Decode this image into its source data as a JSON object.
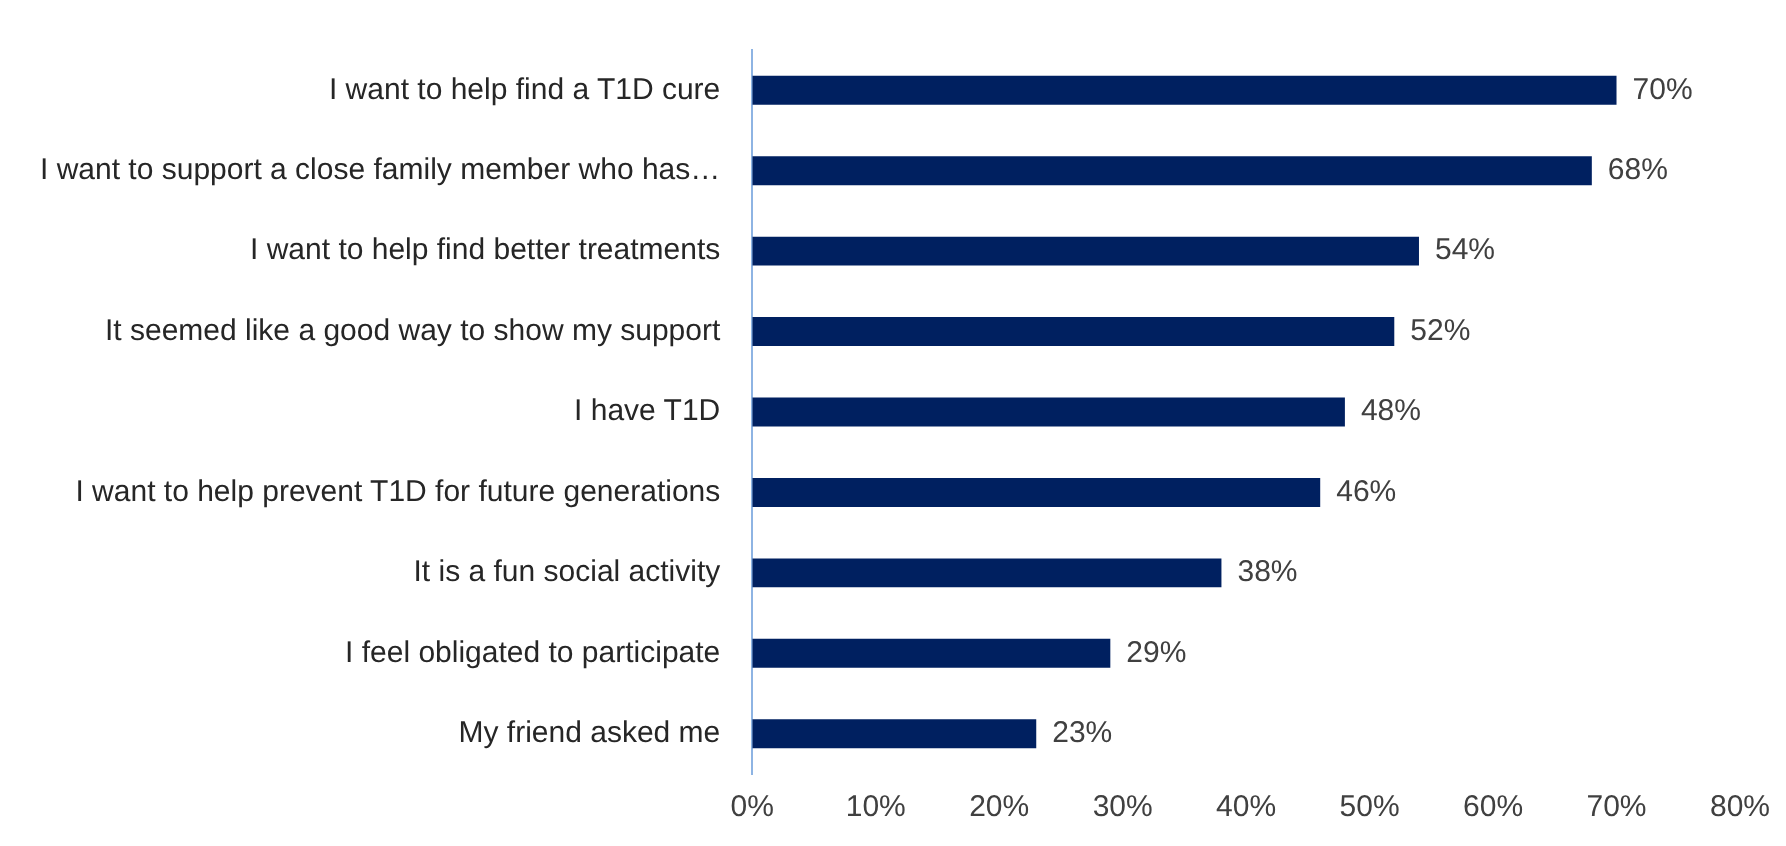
{
  "chart_data": {
    "type": "bar",
    "orientation": "horizontal",
    "categories": [
      "I want to help find a T1D cure",
      "I want to support a close family member who has…",
      "I want to help find better treatments",
      "It seemed like a good way to show my support",
      "I have T1D",
      "I want to help prevent T1D for future generations",
      "It is a fun social activity",
      "I feel obligated to participate",
      "My friend asked me"
    ],
    "values": [
      70,
      68,
      54,
      52,
      48,
      46,
      38,
      29,
      23
    ],
    "value_labels": [
      "70%",
      "68%",
      "54%",
      "52%",
      "48%",
      "46%",
      "38%",
      "29%",
      "23%"
    ],
    "color": "#002060",
    "xlim": [
      0,
      80
    ],
    "xticks": [
      {
        "value": 0,
        "label": "0%"
      },
      {
        "value": 10,
        "label": "10%"
      },
      {
        "value": 20,
        "label": "20%"
      },
      {
        "value": 30,
        "label": "30%"
      },
      {
        "value": 40,
        "label": "40%"
      },
      {
        "value": 50,
        "label": "50%"
      },
      {
        "value": 60,
        "label": "60%"
      },
      {
        "value": 70,
        "label": "70%"
      },
      {
        "value": 80,
        "label": "80%"
      }
    ],
    "grid": false,
    "legend": false
  }
}
